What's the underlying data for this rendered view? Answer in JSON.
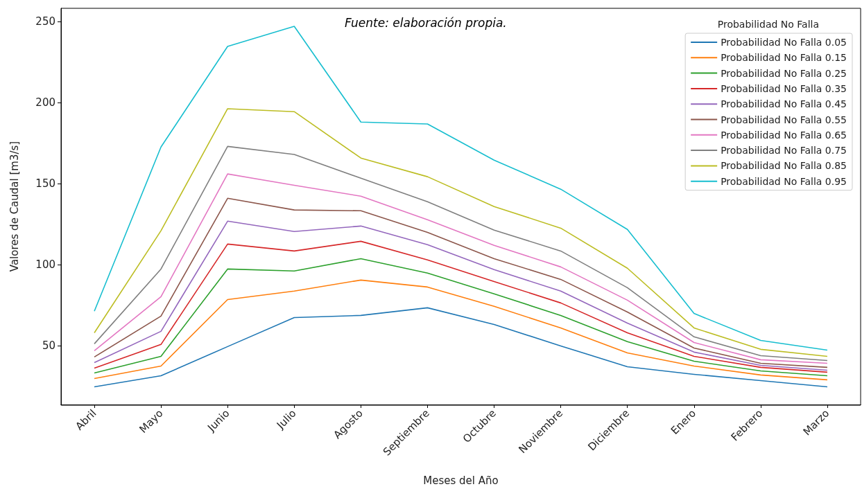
{
  "chart_data": {
    "type": "line",
    "xlabel": "Meses del Año",
    "ylabel": "Valores de Caudal [m3/s]",
    "legend_title": "Probabilidad No Falla",
    "annotations": [
      "Fuente: elaboración propia."
    ],
    "categories": [
      "Abril",
      "Mayo",
      "Junio",
      "Julio",
      "Agosto",
      "Septiembre",
      "Octubre",
      "Noviembre",
      "Diciembre",
      "Enero",
      "Febrero",
      "Marzo"
    ],
    "ylim": [
      13.9,
      258.1
    ],
    "yticks": [
      50,
      100,
      150,
      200,
      250
    ],
    "grid": false,
    "legend": "top right",
    "marker": "none",
    "line_style": "solid",
    "series": [
      {
        "name": "Probabilidad No Falla 0.05",
        "color": "#1f77b4",
        "values": [
          24.8,
          31.6,
          49.6,
          67.5,
          68.8,
          73.5,
          63.2,
          50,
          37.2,
          32.5,
          28.6,
          24.8
        ]
      },
      {
        "name": "Probabilidad No Falla 0.15",
        "color": "#ff7f0e",
        "values": [
          29.9,
          37.6,
          78.6,
          83.8,
          90.6,
          86.3,
          74.4,
          61.1,
          45.7,
          37.6,
          32.1,
          29.1
        ]
      },
      {
        "name": "Probabilidad No Falla 0.25",
        "color": "#2ca02c",
        "values": [
          33.3,
          43.6,
          97.4,
          96.2,
          103.8,
          94.9,
          82.1,
          68.8,
          52.6,
          40.6,
          34.6,
          31.6
        ]
      },
      {
        "name": "Probabilidad No Falla 0.35",
        "color": "#d62728",
        "values": [
          36.3,
          50.9,
          112.8,
          108.5,
          114.5,
          103,
          89.7,
          76.5,
          58.1,
          43.6,
          36.8,
          33.8
        ]
      },
      {
        "name": "Probabilidad No Falla 0.45",
        "color": "#9467bd",
        "values": [
          39.7,
          59,
          126.9,
          120.5,
          123.9,
          112.4,
          97,
          83.8,
          64.1,
          46.2,
          38,
          35
        ]
      },
      {
        "name": "Probabilidad No Falla 0.55",
        "color": "#8c564b",
        "values": [
          43.2,
          68.4,
          141,
          133.8,
          133.3,
          120,
          103.8,
          91,
          70.9,
          48.7,
          39.3,
          36.8
        ]
      },
      {
        "name": "Probabilidad No Falla 0.65",
        "color": "#e377c2",
        "values": [
          47,
          80.3,
          156,
          149,
          142.3,
          127.8,
          112,
          98.7,
          78.2,
          52.1,
          41.5,
          39.3
        ]
      },
      {
        "name": "Probabilidad No Falla 0.75",
        "color": "#7f7f7f",
        "values": [
          51.3,
          97.4,
          173,
          168,
          153.4,
          138.9,
          121.4,
          108.5,
          85.9,
          55.6,
          44,
          41
        ]
      },
      {
        "name": "Probabilidad No Falla 0.85",
        "color": "#bcbd22",
        "values": [
          58.1,
          121,
          196.2,
          194.4,
          165.8,
          154.3,
          135.9,
          122.6,
          97.9,
          61.1,
          47.9,
          43.6
        ]
      },
      {
        "name": "Probabilidad No Falla 0.95",
        "color": "#17becf",
        "values": [
          71.4,
          172.6,
          234.6,
          247,
          188,
          186.8,
          164.5,
          146.6,
          121.8,
          70,
          53.4,
          47.4
        ]
      }
    ]
  }
}
